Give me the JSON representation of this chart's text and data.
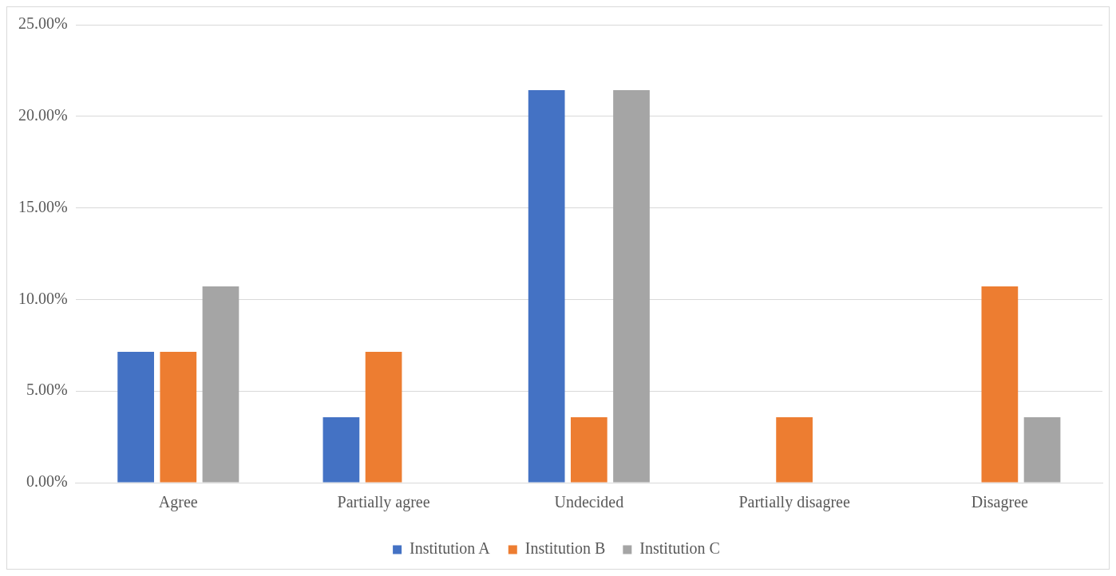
{
  "chart_data": {
    "type": "bar",
    "categories": [
      "Agree",
      "Partially agree",
      "Undecided",
      "Partially disagree",
      "Disagree"
    ],
    "series": [
      {
        "name": "Institution A",
        "color": "#4472c4",
        "values": [
          7.14,
          3.57,
          21.43,
          0,
          0
        ]
      },
      {
        "name": "Institution B",
        "color": "#ed7d31",
        "values": [
          7.14,
          7.14,
          3.57,
          3.57,
          10.71
        ]
      },
      {
        "name": "Institution C",
        "color": "#a5a5a5",
        "values": [
          10.71,
          0,
          21.43,
          0,
          3.57
        ]
      }
    ],
    "ylim": [
      0,
      25
    ],
    "yticks": [
      {
        "value": 0,
        "label": "0.00%"
      },
      {
        "value": 5,
        "label": "5.00%"
      },
      {
        "value": 10,
        "label": "10.00%"
      },
      {
        "value": 15,
        "label": "15.00%"
      },
      {
        "value": 20,
        "label": "20.00%"
      },
      {
        "value": 25,
        "label": "25.00%"
      }
    ],
    "grid": "y",
    "legend": "bottom"
  }
}
